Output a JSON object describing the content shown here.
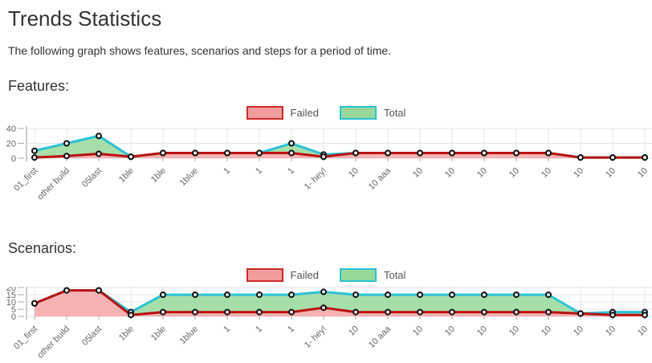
{
  "page": {
    "title": "Trends Statistics",
    "subtitle": "The following graph shows features, scenarios and steps for a period of time."
  },
  "legend": {
    "failed": "Failed",
    "total": "Total"
  },
  "colors": {
    "failed_line": "#bb1111",
    "failed_fill": "#f29d9d",
    "total_line": "#2bc2d4",
    "total_fill": "#98d99b",
    "grid": "#e5e5e5",
    "axis": "#9a9a9a",
    "tick": "#aaaaaa",
    "marker_stroke": "#111111",
    "tick_text": "#666666"
  },
  "chart_data": [
    {
      "id": "features",
      "type": "area",
      "title": "Features:",
      "categories": [
        "01_first",
        "other build",
        "05last",
        "1ble",
        "1ble",
        "1blue",
        "1",
        "1",
        "1",
        "1- hey!",
        "10",
        "10 aaa",
        "10",
        "10",
        "10",
        "10",
        "10",
        "10",
        "10",
        "10"
      ],
      "series": [
        {
          "name": "Failed",
          "values": [
            1,
            3,
            6,
            2,
            7,
            7,
            7,
            7,
            7,
            2,
            7,
            7,
            7,
            7,
            7,
            7,
            7,
            1,
            1,
            1
          ]
        },
        {
          "name": "Total",
          "values": [
            10,
            20,
            30,
            2,
            7,
            7,
            7,
            7,
            20,
            5,
            7,
            7,
            7,
            7,
            7,
            7,
            7,
            1,
            1,
            1
          ]
        }
      ],
      "ylim": [
        0,
        40
      ],
      "yticks": [
        0,
        20,
        40
      ],
      "grid": true,
      "legend_position": "top-center"
    },
    {
      "id": "scenarios",
      "type": "area",
      "title": "Scenarios:",
      "categories": [
        "01_first",
        "other build",
        "05last",
        "1ble",
        "1ble",
        "1blue",
        "1",
        "1",
        "1",
        "1- hey!",
        "10",
        "10 aaa",
        "10",
        "10",
        "10",
        "10",
        "10",
        "10",
        "10",
        "10"
      ],
      "series": [
        {
          "name": "Failed",
          "values": [
            9,
            18,
            18,
            1,
            3,
            3,
            3,
            3,
            3,
            6,
            3,
            3,
            3,
            3,
            3,
            3,
            3,
            2,
            1,
            1
          ]
        },
        {
          "name": "Total",
          "values": [
            9,
            18,
            18,
            3,
            15,
            15,
            15,
            15,
            15,
            17,
            15,
            15,
            15,
            15,
            15,
            15,
            15,
            2,
            3,
            3
          ]
        }
      ],
      "ylim": [
        0,
        20
      ],
      "yticks": [
        0,
        5,
        10,
        15,
        20
      ],
      "grid": true,
      "legend_position": "top-center"
    }
  ]
}
